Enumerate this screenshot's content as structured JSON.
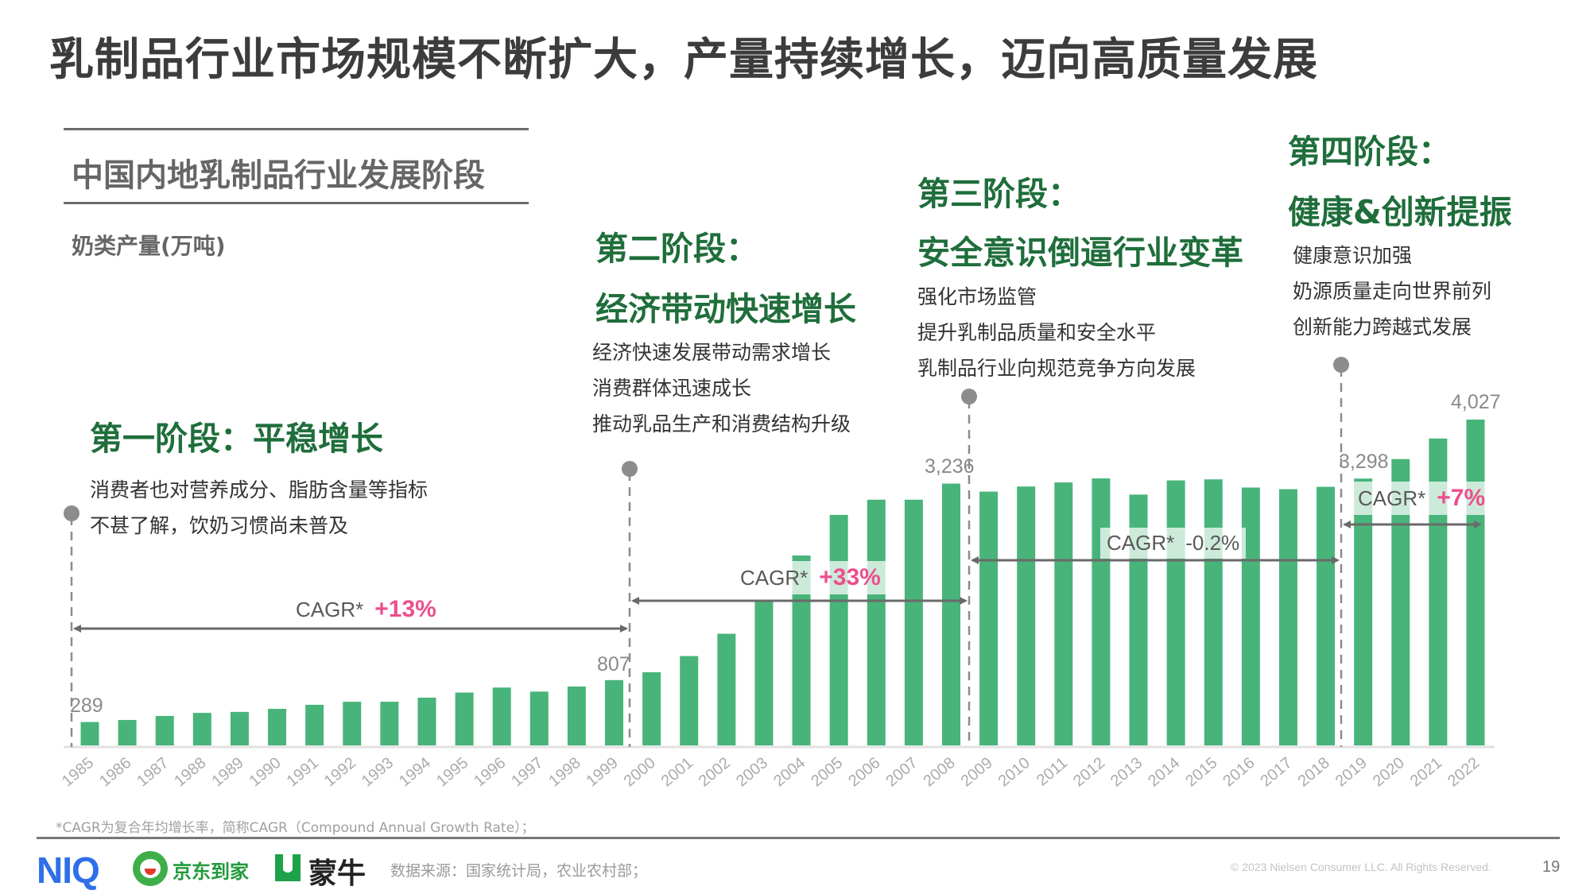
{
  "header": {
    "title": "乳制品行业市场规模不断扩大，产量持续增长，迈向高质量发展"
  },
  "section": {
    "title": "中国内地乳制品行业发展阶段",
    "unit_label": "奶类产量(万吨)"
  },
  "stages": [
    {
      "title_lines": [
        "第一阶段：平稳增长"
      ],
      "desc": [
        "消费者也对营养成分、脂肪含量等指标",
        "不甚了解，饮奶习惯尚未普及"
      ],
      "cagr_label": "CAGR*",
      "cagr_value": "+13%"
    },
    {
      "title_lines": [
        "第二阶段：",
        "经济带动快速增长"
      ],
      "desc": [
        "经济快速发展带动需求增长",
        "消费群体迅速成长",
        "推动乳品生产和消费结构升级"
      ],
      "cagr_label": "CAGR*",
      "cagr_value": "+33%"
    },
    {
      "title_lines": [
        "第三阶段：",
        "安全意识倒逼行业变革"
      ],
      "desc": [
        "强化市场监管",
        "提升乳制品质量和安全水平",
        "乳制品行业向规范竞争方向发展"
      ],
      "cagr_label": "CAGR*",
      "cagr_value": "-0.2%"
    },
    {
      "title_lines": [
        "第四阶段：",
        "健康&创新提振"
      ],
      "desc": [
        "健康意识加强",
        "奶源质量走向世界前列",
        "创新能力跨越式发展"
      ],
      "cagr_label": "CAGR*",
      "cagr_value": "+7%"
    }
  ],
  "chart_data": {
    "type": "bar",
    "title": "中国内地乳制品行业发展阶段",
    "ylabel": "奶类产量(万吨)",
    "ylim": [
      0,
      4027
    ],
    "categories": [
      "1985",
      "1986",
      "1987",
      "1988",
      "1989",
      "1990",
      "1991",
      "1992",
      "1993",
      "1994",
      "1995",
      "1996",
      "1997",
      "1998",
      "1999",
      "2000",
      "2001",
      "2002",
      "2003",
      "2004",
      "2005",
      "2006",
      "2007",
      "2008",
      "2009",
      "2010",
      "2011",
      "2012",
      "2013",
      "2014",
      "2015",
      "2016",
      "2017",
      "2018",
      "2019",
      "2020",
      "2021",
      "2022"
    ],
    "values": [
      289,
      314,
      364,
      402,
      414,
      452,
      502,
      540,
      540,
      590,
      653,
      715,
      665,
      728,
      807,
      904,
      1104,
      1380,
      1795,
      2347,
      2849,
      3037,
      3037,
      3236,
      3137,
      3200,
      3250,
      3300,
      3100,
      3275,
      3288,
      3187,
      3167,
      3196,
      3298,
      3539,
      3793,
      4027
    ],
    "data_labels": {
      "1985": "289",
      "1999": "807",
      "2008": "3,236",
      "2019": "3,298",
      "2022": "4,027"
    },
    "bar_color": "#48b47a",
    "grid": false
  },
  "footer": {
    "footnote": "*CAGR为复合年均增长率，简称CAGR（Compound Annual Growth Rate）；",
    "source": "数据来源：国家统计局，农业农村部；",
    "copyright": "© 2023 Nielsen Consumer LLC. All Rights Reserved.",
    "page_number": "19",
    "logos": [
      "NIQ",
      "京东到家",
      "蒙牛"
    ]
  }
}
